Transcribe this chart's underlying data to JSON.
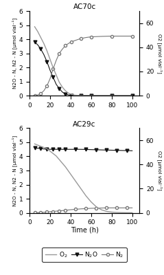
{
  "title1": "AC70c",
  "title2": "AC29c",
  "xlabel": "Time (h)",
  "ylabel_left": "N2O - N, N2 - N [μmol vial⁻¹]",
  "ylabel_right": "O2 [μmol vial⁻¹]",
  "ylim_left": [
    0,
    6
  ],
  "ylim_right": [
    0,
    70
  ],
  "yticks_left": [
    0,
    1,
    2,
    3,
    4,
    5,
    6
  ],
  "yticks_right": [
    0,
    20,
    40,
    60
  ],
  "xticks": [
    0,
    20,
    40,
    60,
    80,
    100
  ],
  "xlim": [
    0,
    107
  ],
  "ac70c_time": [
    5,
    8,
    11,
    14,
    17,
    20,
    23,
    26,
    29,
    32,
    35,
    38,
    41,
    44,
    50,
    55,
    60,
    70,
    80,
    90,
    100
  ],
  "ac70c_O2": [
    57,
    53,
    48,
    43,
    37,
    30,
    23,
    17,
    11,
    7,
    4,
    2,
    1.0,
    0.4,
    0.1,
    0.05,
    0.02,
    0.01,
    0.01,
    0.01,
    0.01
  ],
  "ac70c_N2O": [
    3.8,
    3.6,
    3.3,
    2.9,
    2.4,
    1.8,
    1.3,
    0.8,
    0.5,
    0.25,
    0.12,
    0.05,
    0.02,
    0.01,
    0.005,
    0.003,
    0.002,
    0.001,
    0.001,
    0.001,
    0.001
  ],
  "ac70c_N2": [
    0.0,
    0.05,
    0.15,
    0.35,
    0.7,
    1.2,
    1.9,
    2.5,
    3.0,
    3.3,
    3.55,
    3.7,
    3.82,
    3.9,
    4.05,
    4.12,
    4.17,
    4.2,
    4.22,
    4.22,
    4.22
  ],
  "ac29c_time": [
    5,
    8,
    11,
    14,
    17,
    20,
    23,
    26,
    29,
    32,
    35,
    40,
    45,
    50,
    55,
    60,
    65,
    70,
    75,
    80,
    85,
    90,
    95,
    100
  ],
  "ac29c_O2": [
    57,
    56,
    55,
    54,
    53,
    51,
    49,
    47,
    44,
    41,
    38,
    32,
    26,
    20,
    14,
    9,
    5,
    2.5,
    1.2,
    0.6,
    0.3,
    0.15,
    0.1,
    0.08
  ],
  "ac29c_N2O": [
    4.6,
    4.58,
    4.55,
    4.53,
    4.51,
    4.5,
    4.5,
    4.5,
    4.5,
    4.5,
    4.5,
    4.5,
    4.5,
    4.5,
    4.49,
    4.48,
    4.47,
    4.46,
    4.45,
    4.44,
    4.43,
    4.42,
    4.41,
    4.4
  ],
  "ac29c_N2": [
    0.01,
    0.02,
    0.03,
    0.04,
    0.06,
    0.08,
    0.1,
    0.12,
    0.14,
    0.16,
    0.18,
    0.22,
    0.25,
    0.28,
    0.3,
    0.32,
    0.33,
    0.34,
    0.35,
    0.35,
    0.35,
    0.35,
    0.35,
    0.35
  ],
  "color_O2": "#999999",
  "color_N2O": "#111111",
  "color_N2": "#777777",
  "background": "#ffffff"
}
